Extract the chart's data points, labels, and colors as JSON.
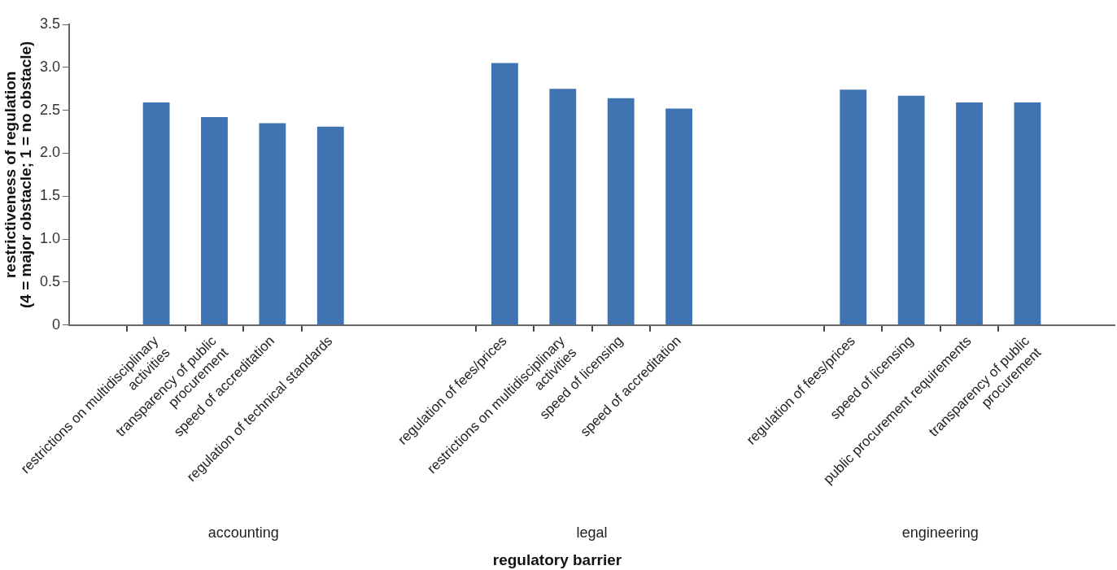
{
  "chart_data": {
    "type": "bar",
    "categories": [
      null,
      "restrictions on multidisciplinary activities",
      "transparency of public procurement",
      "speed of accreditation",
      "regulation of technical standards",
      null,
      null,
      "regulation of fees/prices",
      "restrictions on multidisciplinary activities",
      "speed of licensing",
      "speed of accreditation",
      null,
      null,
      "regulation of fees/prices",
      "speed of licensing",
      "public procurement requirements",
      "transparency of public procurement",
      null
    ],
    "values": [
      null,
      2.59,
      2.42,
      2.35,
      2.31,
      null,
      null,
      3.05,
      2.75,
      2.64,
      2.52,
      null,
      null,
      2.74,
      2.67,
      2.59,
      2.59,
      null
    ],
    "color": "#3f73b2",
    "ylabel": "restrictiveness of regulation\n(4 = major obstacle; 1 = no obstacle)",
    "xlabel": "regulatory barrier",
    "annotations": [
      "accounting",
      "legal",
      "engineering"
    ],
    "ylim": [
      0,
      3.5
    ],
    "yticks": [
      0,
      0.5,
      {
        "value": 1,
        "label": "1.0"
      },
      1.5,
      {
        "value": 2,
        "label": "2.0"
      },
      2.5,
      {
        "value": 3,
        "label": "3.0"
      },
      3.5
    ]
  }
}
